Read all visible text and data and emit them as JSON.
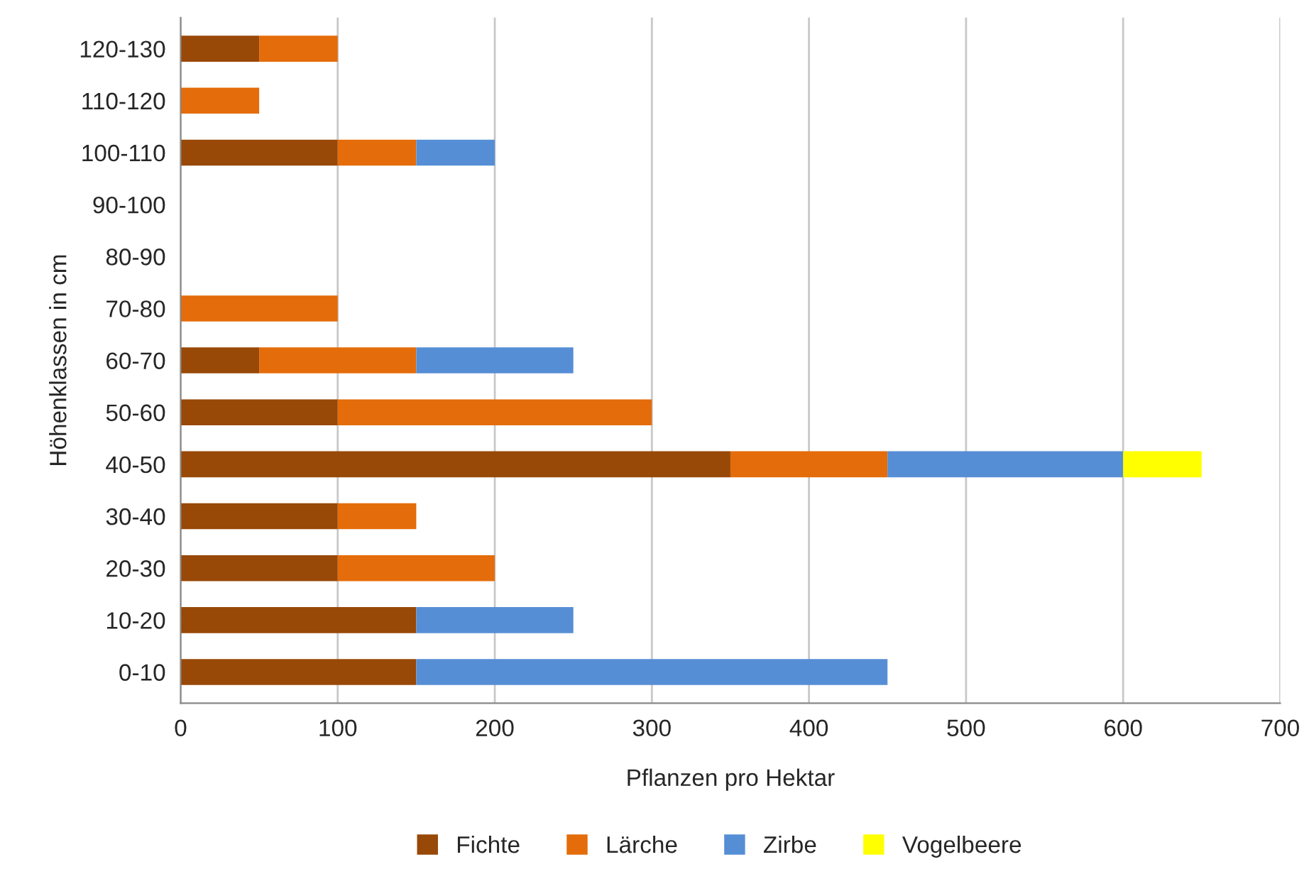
{
  "chart_data": {
    "type": "bar",
    "orientation": "horizontal",
    "stacked": true,
    "categories": [
      "120-130",
      "110-120",
      "100-110",
      "90-100",
      "80-90",
      "70-80",
      "60-70",
      "50-60",
      "40-50",
      "30-40",
      "20-30",
      "10-20",
      "0-10"
    ],
    "series": [
      {
        "name": "Fichte",
        "color": "#984807",
        "values": [
          50,
          null,
          100,
          null,
          null,
          null,
          50,
          100,
          350,
          100,
          100,
          150,
          150
        ]
      },
      {
        "name": "Lärche",
        "color": "#e46c0a",
        "values": [
          50,
          50,
          50,
          null,
          null,
          100,
          100,
          200,
          100,
          50,
          100,
          null,
          null
        ]
      },
      {
        "name": "Zirbe",
        "color": "#558ed5",
        "values": [
          null,
          null,
          50,
          null,
          null,
          null,
          100,
          null,
          150,
          null,
          null,
          100,
          300
        ]
      },
      {
        "name": "Vogelbeere",
        "color": "#ffff00",
        "values": [
          null,
          null,
          null,
          null,
          null,
          null,
          null,
          null,
          50,
          null,
          null,
          null,
          null
        ]
      }
    ],
    "xlabel": "Pflanzen pro Hektar",
    "ylabel": "Höhenklassen in cm",
    "xlim": [
      0,
      700
    ],
    "xticks": [
      0,
      100,
      200,
      300,
      400,
      500,
      600,
      700
    ],
    "grid": "x",
    "legend": "bottom"
  }
}
